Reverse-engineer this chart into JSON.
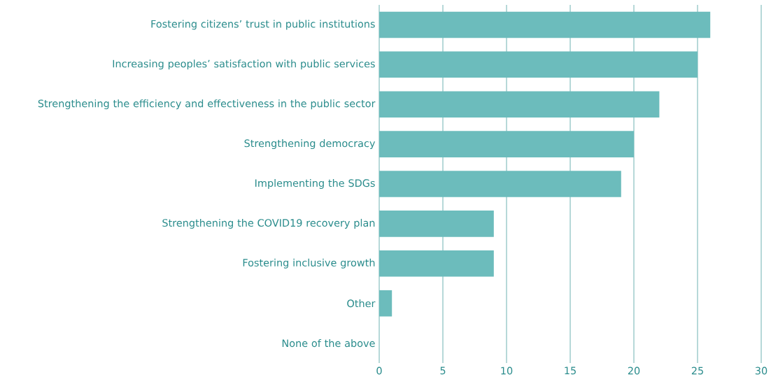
{
  "chart_data": {
    "type": "bar",
    "orientation": "horizontal",
    "categories": [
      "Fostering citizens’ trust in public institutions",
      "Increasing peoples’ satisfaction with public services",
      "Strengthening the efficiency and effectiveness in the public sector",
      "Strengthening democracy",
      "Implementing the SDGs",
      "Strengthening the COVID19 recovery plan",
      "Fostering inclusive growth",
      "Other",
      "None of the above"
    ],
    "values": [
      26,
      25,
      22,
      20,
      19,
      9,
      9,
      1,
      0
    ],
    "color": "#6cbcbc",
    "xlim": [
      0,
      30
    ],
    "xticks": [
      0,
      5,
      10,
      15,
      20,
      25,
      30
    ],
    "grid": "x"
  }
}
